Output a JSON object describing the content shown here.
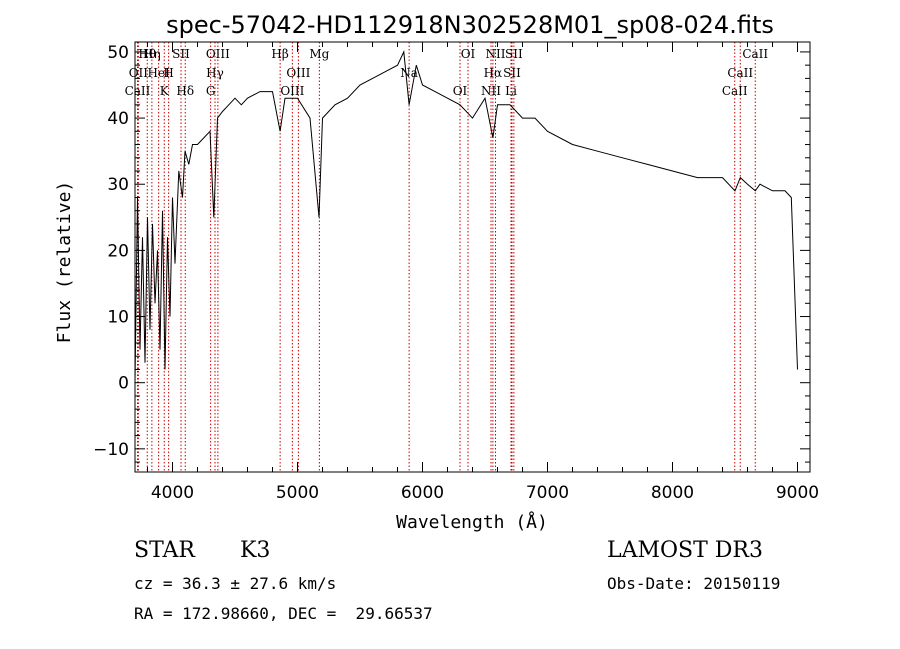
{
  "chart_data": {
    "type": "line",
    "title": "spec-57042-HD112918N302528M01_sp08-024.fits",
    "xlabel": "Wavelength (Å)",
    "ylabel": "Flux (relative)",
    "xlim": [
      3700,
      9100
    ],
    "ylim": [
      -13.5,
      51.5
    ],
    "x_ticks": [
      4000,
      5000,
      6000,
      7000,
      8000,
      9000
    ],
    "y_ticks": [
      -10,
      0,
      10,
      20,
      30,
      40,
      50
    ],
    "grid": false,
    "series": [
      {
        "name": "flux",
        "x": [
          3700,
          3720,
          3740,
          3760,
          3780,
          3800,
          3820,
          3840,
          3860,
          3880,
          3900,
          3920,
          3940,
          3960,
          3980,
          4000,
          4020,
          4050,
          4080,
          4100,
          4130,
          4160,
          4200,
          4250,
          4300,
          4330,
          4360,
          4400,
          4450,
          4500,
          4550,
          4600,
          4700,
          4800,
          4861,
          4900,
          5000,
          5100,
          5172,
          5200,
          5300,
          5400,
          5500,
          5600,
          5700,
          5800,
          5850,
          5893,
          5950,
          6000,
          6100,
          6200,
          6300,
          6400,
          6500,
          6563,
          6600,
          6700,
          6800,
          6900,
          7000,
          7200,
          7400,
          7600,
          7800,
          8000,
          8200,
          8400,
          8500,
          8542,
          8600,
          8662,
          8700,
          8800,
          8900,
          8950,
          9000
        ],
        "y": [
          0,
          28,
          5,
          22,
          3,
          25,
          8,
          24,
          12,
          20,
          5,
          26,
          2,
          22,
          10,
          28,
          18,
          32,
          28,
          35,
          33,
          36,
          36,
          37,
          38,
          25,
          40,
          41,
          42,
          43,
          42,
          43,
          44,
          44,
          38,
          43,
          43,
          40,
          25,
          40,
          42,
          43,
          45,
          46,
          47,
          48,
          50,
          42,
          48,
          45,
          44,
          43,
          42,
          40,
          43,
          37,
          42,
          42,
          40,
          40,
          38,
          36,
          35,
          34,
          33,
          32,
          31,
          31,
          29,
          31,
          30,
          29,
          30,
          29,
          29,
          28,
          2
        ]
      }
    ],
    "spectral_lines": [
      {
        "label": "Hθ",
        "wavelength": 3798
      },
      {
        "label": "OII",
        "wavelength": 3727
      },
      {
        "label": "CaII",
        "wavelength": 3720
      },
      {
        "label": "Hη",
        "wavelength": 3835
      },
      {
        "label": "HeI",
        "wavelength": 3889
      },
      {
        "label": "K",
        "wavelength": 3934
      },
      {
        "label": "SII",
        "wavelength": 4068
      },
      {
        "label": "H",
        "wavelength": 3969
      },
      {
        "label": "Hδ",
        "wavelength": 4102
      },
      {
        "label": "OIII",
        "wavelength": 4363
      },
      {
        "label": "Hγ",
        "wavelength": 4340
      },
      {
        "label": "G",
        "wavelength": 4305
      },
      {
        "label": "Hβ",
        "wavelength": 4861
      },
      {
        "label": "OIII",
        "wavelength": 5007
      },
      {
        "label": "OIII",
        "wavelength": 4959
      },
      {
        "label": "Mg",
        "wavelength": 5175
      },
      {
        "label": "Na",
        "wavelength": 5893
      },
      {
        "label": "OI",
        "wavelength": 6300
      },
      {
        "label": "OI",
        "wavelength": 6364
      },
      {
        "label": "Hα",
        "wavelength": 6563
      },
      {
        "label": "NII",
        "wavelength": 6548
      },
      {
        "label": "NII",
        "wavelength": 6584
      },
      {
        "label": "SII",
        "wavelength": 6716
      },
      {
        "label": "Li",
        "wavelength": 6708
      },
      {
        "label": "SII",
        "wavelength": 6731
      },
      {
        "label": "CaII",
        "wavelength": 8542
      },
      {
        "label": "CaII",
        "wavelength": 8498
      },
      {
        "label": "CaII",
        "wavelength": 8662
      }
    ]
  },
  "info": {
    "class": "STAR",
    "subclass": "K3",
    "survey": "LAMOST DR3",
    "cz": "cz = 36.3 ± 27.6 km/s",
    "obs_date": "Obs-Date: 20150119",
    "coords": "RA = 172.98660, DEC =  29.66537"
  },
  "colors": {
    "spectrum": "#000000",
    "line_markers": "#cc0000",
    "axes": "#000000"
  }
}
